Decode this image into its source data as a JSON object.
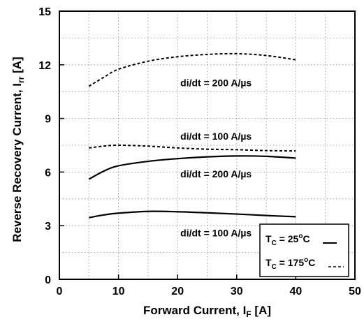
{
  "chart_data": {
    "type": "line",
    "title": "",
    "xlabel": {
      "main": "Forward Current, I",
      "sub": "F",
      "unit": " [A]"
    },
    "ylabel": {
      "main": "Reverse Recovery Current, I",
      "sub": "rr",
      "unit": " [A]"
    },
    "xlim": [
      0,
      50
    ],
    "ylim": [
      0,
      15
    ],
    "x_ticks": [
      0,
      10,
      20,
      30,
      40,
      50
    ],
    "y_ticks": [
      0,
      3,
      6,
      9,
      12,
      15
    ],
    "grid": true,
    "series": [
      {
        "line_style": "solid",
        "x": [
          5,
          7.5,
          10,
          15,
          20,
          25,
          30,
          35,
          40
        ],
        "y": [
          3.45,
          3.6,
          3.7,
          3.8,
          3.78,
          3.72,
          3.65,
          3.57,
          3.5
        ]
      },
      {
        "line_style": "solid",
        "x": [
          5,
          7.5,
          10,
          15,
          20,
          25,
          30,
          35,
          40
        ],
        "y": [
          5.6,
          6.05,
          6.35,
          6.6,
          6.75,
          6.85,
          6.9,
          6.88,
          6.78
        ]
      },
      {
        "line_style": "dashed",
        "x": [
          5,
          7.5,
          10,
          15,
          20,
          25,
          30,
          35,
          40
        ],
        "y": [
          7.35,
          7.45,
          7.5,
          7.45,
          7.35,
          7.28,
          7.25,
          7.2,
          7.18
        ]
      },
      {
        "line_style": "dashed",
        "x": [
          5,
          7.5,
          10,
          15,
          20,
          25,
          30,
          35,
          40
        ],
        "y": [
          10.8,
          11.3,
          11.75,
          12.2,
          12.45,
          12.58,
          12.62,
          12.52,
          12.28
        ]
      }
    ],
    "annotations": [
      {
        "text": "di/dt = 200 A/µs",
        "x": 26.5,
        "y": 11.0
      },
      {
        "text": "di/dt = 100 A/µs",
        "x": 26.5,
        "y": 8.0
      },
      {
        "text": "di/dt = 200 A/µs",
        "x": 26.5,
        "y": 5.9
      },
      {
        "text": "di/dt = 100 A/µs",
        "x": 26.5,
        "y": 2.6
      }
    ],
    "legend": {
      "placement": "bottom-right",
      "entries": [
        {
          "prefix": "T",
          "sub": "C",
          "value": " = 25",
          "sup": "o",
          "unit": "C",
          "line_style": "solid"
        },
        {
          "prefix": "T",
          "sub": "C",
          "value": " = 175",
          "sup": "o",
          "unit": "C",
          "line_style": "dashed"
        }
      ]
    },
    "colors": {
      "line": "#000000",
      "grid": "#888888",
      "background": "#ffffff"
    }
  }
}
